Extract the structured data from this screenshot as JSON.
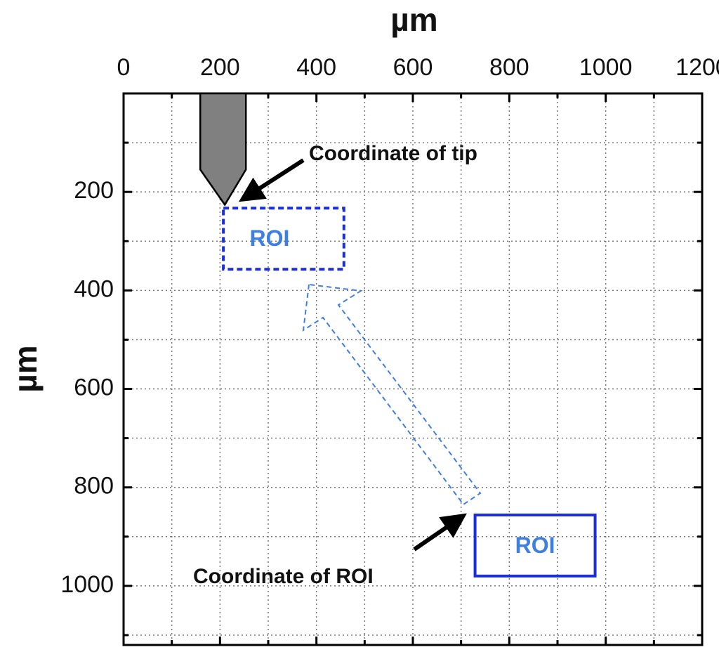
{
  "chart_data": {
    "type": "annotated-plane",
    "xlabel": "µm",
    "ylabel": "µm",
    "xlim": [
      0,
      1200
    ],
    "ylim": [
      0,
      1120
    ],
    "xticks": [
      0,
      200,
      400,
      600,
      800,
      1000,
      1200
    ],
    "yticks": [
      200,
      400,
      600,
      800,
      1000
    ],
    "xminorticks": [
      100,
      300,
      500,
      700,
      900,
      1100
    ],
    "yminorticks": [
      100,
      300,
      500,
      700,
      900,
      1100
    ],
    "grid": true,
    "tip": {
      "x": 210,
      "y": 226
    },
    "regions": [
      {
        "label": "ROI",
        "x": [
          207,
          457
        ],
        "y": [
          233,
          357
        ],
        "style": "dashed",
        "color": "#1a2fd6"
      },
      {
        "label": "ROI",
        "x": [
          729,
          978
        ],
        "y": [
          856,
          980
        ],
        "style": "solid",
        "color": "#1a2fd6"
      }
    ],
    "annotations": [
      {
        "text": "Coordinate of tip"
      },
      {
        "text": "Coordinate of ROI"
      }
    ]
  }
}
